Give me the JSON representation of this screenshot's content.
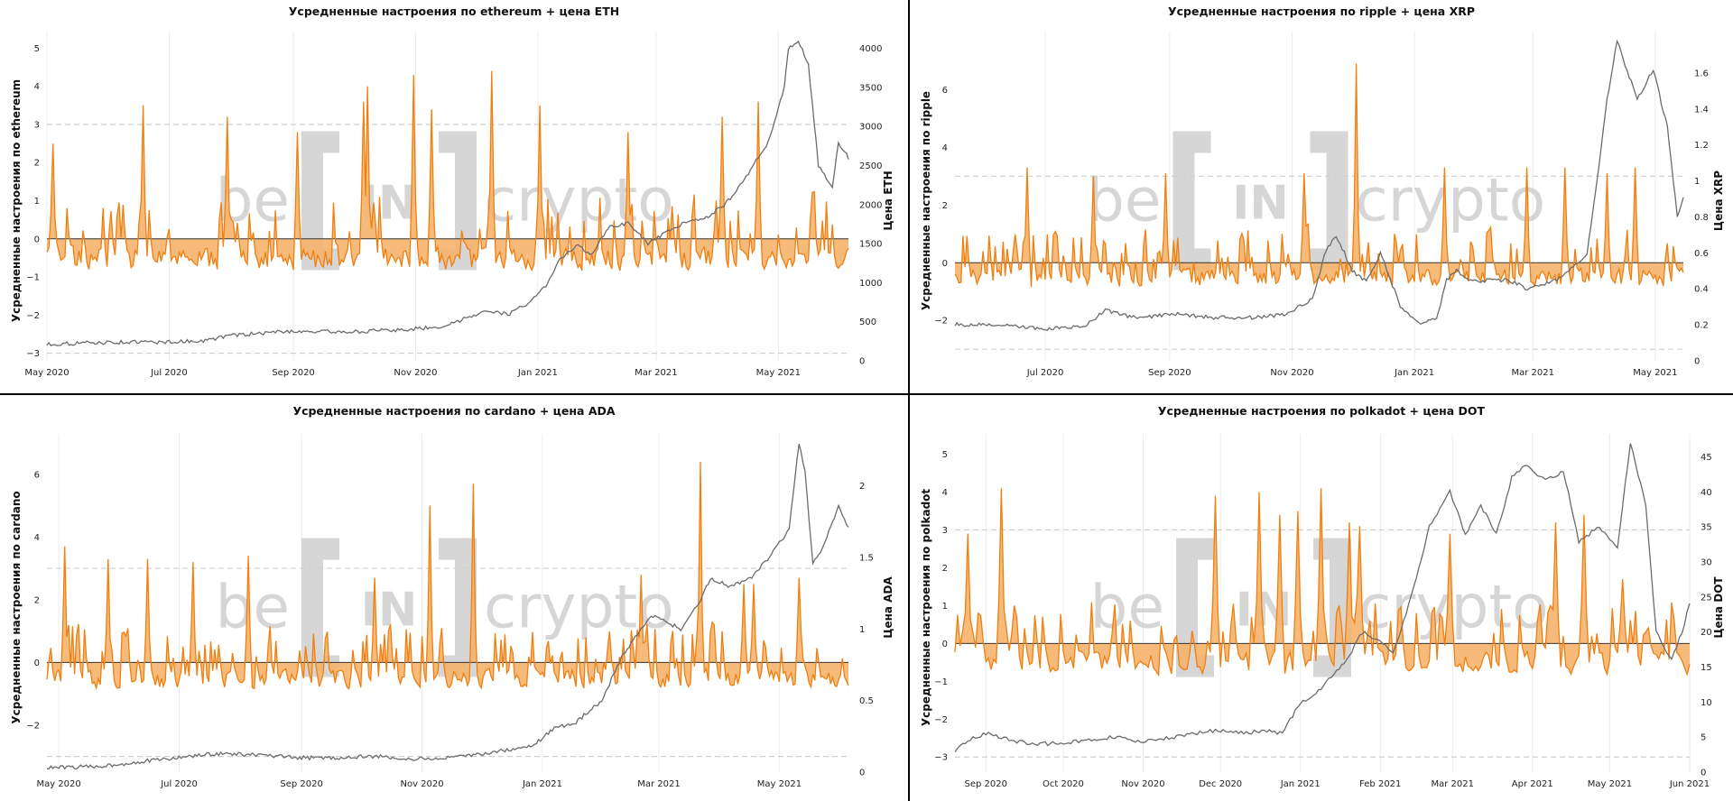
{
  "watermark": {
    "left": "be",
    "mid": "IN",
    "right": "crypto"
  },
  "colors": {
    "sentiment": "#f07f10",
    "fill": "#f5b26b",
    "price": "#6b6b6b",
    "grid": "#ececec",
    "ref": "#cfcfcf"
  },
  "chart_data": [
    {
      "type": "line",
      "title": "Усредненные настроения по ethereum + цена ETH",
      "ylabel": "Усредненные настроения по ethereum",
      "y2label": "Цена ETH",
      "ylim": [
        -3.2,
        5.2
      ],
      "y2lim": [
        0,
        4100
      ],
      "yticks": [
        "5",
        "4",
        "3",
        "2",
        "1",
        "0",
        "−1",
        "−2",
        "−3"
      ],
      "y2ticks": [
        "4000",
        "3500",
        "3000",
        "2500",
        "2000",
        "1500",
        "1000",
        "500",
        "0"
      ],
      "xticks": [
        "May 2020",
        "Jul 2020",
        "Sep 2020",
        "Nov 2020",
        "Jan 2021",
        "Mar 2021",
        "May 2021"
      ],
      "xrange_days": [
        0,
        400
      ],
      "xtick_days": [
        0,
        61,
        123,
        184,
        245,
        304,
        365
      ],
      "ref_lines": [
        3,
        -3
      ],
      "series": [
        {
          "name": "Настроения",
          "axis": "y",
          "seed": 11,
          "peaks": [
            [
              3,
              2.5
            ],
            [
              48,
              3.5
            ],
            [
              90,
              3.2
            ],
            [
              125,
              2.8
            ],
            [
              158,
              3.6
            ],
            [
              160,
              4.0
            ],
            [
              183,
              4.3
            ],
            [
              192,
              3.4
            ],
            [
              222,
              4.4
            ],
            [
              246,
              3.5
            ],
            [
              290,
              2.8
            ],
            [
              337,
              3.2
            ],
            [
              355,
              3.6
            ]
          ]
        },
        {
          "name": "Цена ETH",
          "axis": "y2",
          "x": [
            0,
            20,
            40,
            60,
            80,
            90,
            120,
            150,
            170,
            180,
            200,
            210,
            220,
            230,
            240,
            250,
            255,
            265,
            272,
            280,
            290,
            300,
            310,
            320,
            330,
            340,
            350,
            360,
            368,
            370,
            375,
            380,
            385,
            392,
            395,
            400
          ],
          "values": [
            210,
            230,
            240,
            240,
            260,
            320,
            380,
            370,
            390,
            400,
            450,
            560,
            650,
            590,
            740,
            980,
            1270,
            1480,
            1350,
            1700,
            1760,
            1500,
            1650,
            1800,
            1840,
            2050,
            2400,
            2800,
            3500,
            4000,
            4100,
            3800,
            2500,
            2200,
            2800,
            2600
          ]
        }
      ]
    },
    {
      "type": "line",
      "title": "Усредненные настроения по ripple + цена XRP",
      "ylabel": "Усредненные настроения по ripple",
      "y2label": "Цена XRP",
      "ylim": [
        -3.4,
        7.7
      ],
      "y2lim": [
        0,
        1.78
      ],
      "yticks": [
        "6",
        "4",
        "2",
        "0",
        "−2"
      ],
      "y2ticks": [
        "1.6",
        "1.4",
        "1.2",
        "1",
        "0.8",
        "0.6",
        "0.4",
        "0.2",
        "0"
      ],
      "xticks": [
        "Jul 2020",
        "Sep 2020",
        "Nov 2020",
        "Jan 2021",
        "Mar 2021",
        "May 2021"
      ],
      "xrange_days": [
        0,
        363
      ],
      "xtick_days": [
        45,
        107,
        168,
        229,
        288,
        349
      ],
      "ref_lines": [
        3,
        -3
      ],
      "series": [
        {
          "name": "Настроения",
          "axis": "y",
          "seed": 23,
          "peaks": [
            [
              36,
              3.3
            ],
            [
              69,
              3.0
            ],
            [
              105,
              3.1
            ],
            [
              174,
              3.1
            ],
            [
              200,
              6.9
            ],
            [
              244,
              3.3
            ],
            [
              285,
              3.3
            ],
            [
              304,
              3.3
            ],
            [
              325,
              3.1
            ],
            [
              339,
              3.3
            ]
          ]
        },
        {
          "name": "Цена XRP",
          "axis": "y2",
          "x": [
            0,
            20,
            40,
            55,
            65,
            75,
            90,
            110,
            130,
            150,
            165,
            178,
            185,
            190,
            198,
            205,
            212,
            222,
            232,
            240,
            245,
            250,
            258,
            268,
            276,
            285,
            292,
            300,
            308,
            315,
            320,
            325,
            330,
            340,
            348,
            355,
            360,
            363
          ],
          "values": [
            0.2,
            0.2,
            0.18,
            0.18,
            0.2,
            0.28,
            0.24,
            0.26,
            0.24,
            0.24,
            0.26,
            0.34,
            0.62,
            0.7,
            0.5,
            0.44,
            0.6,
            0.3,
            0.21,
            0.23,
            0.45,
            0.5,
            0.44,
            0.45,
            0.45,
            0.4,
            0.42,
            0.45,
            0.52,
            0.6,
            1.0,
            1.45,
            1.78,
            1.45,
            1.62,
            1.3,
            0.8,
            0.9
          ]
        }
      ]
    },
    {
      "type": "line",
      "title": "Усредненные настроения по cardano + цена ADA",
      "ylabel": "Усредненные настроения по cardano",
      "y2label": "Цена ADA",
      "ylim": [
        -3.5,
        7.0
      ],
      "y2lim": [
        0,
        2.3
      ],
      "yticks": [
        "6",
        "4",
        "2",
        "0",
        "−2"
      ],
      "y2ticks": [
        "2",
        "1.5",
        "1",
        "0.5",
        "0"
      ],
      "xticks": [
        "May 2020",
        "Jul 2020",
        "Sep 2020",
        "Nov 2020",
        "Jan 2021",
        "Mar 2021",
        "May 2021"
      ],
      "xrange_days": [
        -6,
        400
      ],
      "xtick_days": [
        0,
        61,
        123,
        184,
        245,
        304,
        365
      ],
      "ref_lines": [
        3,
        -3
      ],
      "series": [
        {
          "name": "Настроения",
          "axis": "y",
          "seed": 37,
          "peaks": [
            [
              3,
              3.7
            ],
            [
              25,
              3.3
            ],
            [
              45,
              3.3
            ],
            [
              68,
              3.2
            ],
            [
              96,
              3.4
            ],
            [
              160,
              2.7
            ],
            [
              188,
              5.0
            ],
            [
              210,
              5.7
            ],
            [
              295,
              2.8
            ],
            [
              325,
              6.4
            ],
            [
              347,
              2.5
            ],
            [
              352,
              2.5
            ],
            [
              375,
              2.7
            ]
          ]
        },
        {
          "name": "Цена ADA",
          "axis": "y2",
          "x": [
            -6,
            20,
            40,
            60,
            80,
            100,
            120,
            140,
            160,
            180,
            200,
            220,
            240,
            250,
            262,
            275,
            285,
            300,
            315,
            325,
            330,
            340,
            350,
            360,
            370,
            375,
            378,
            382,
            388,
            395,
            400
          ],
          "values": [
            0.03,
            0.04,
            0.07,
            0.1,
            0.13,
            0.12,
            0.1,
            0.1,
            0.11,
            0.09,
            0.1,
            0.14,
            0.18,
            0.3,
            0.35,
            0.5,
            0.8,
            1.1,
            1.0,
            1.2,
            1.35,
            1.3,
            1.35,
            1.5,
            1.7,
            2.3,
            2.1,
            1.45,
            1.6,
            1.85,
            1.7
          ]
        }
      ]
    },
    {
      "type": "line",
      "title": "Усредненные настроения по polkadot + цена DOT",
      "ylabel": "Усредненные настроения по polkadot",
      "y2label": "Цена DOT",
      "ylim": [
        -3.4,
        5.3
      ],
      "y2lim": [
        0,
        47
      ],
      "yticks": [
        "5",
        "4",
        "3",
        "2",
        "1",
        "0",
        "−1",
        "−2",
        "−3"
      ],
      "y2ticks": [
        "45",
        "40",
        "35",
        "30",
        "25",
        "20",
        "15",
        "10",
        "5",
        "0"
      ],
      "xticks": [
        "Sep 2020",
        "Oct 2020",
        "Nov 2020",
        "Dec 2020",
        "Jan 2021",
        "Feb 2021",
        "Mar 2021",
        "Apr 2021",
        "May 2021",
        "Jun 2021"
      ],
      "xrange_days": [
        -12,
        273
      ],
      "xtick_days": [
        0,
        30,
        61,
        91,
        122,
        153,
        181,
        212,
        242,
        273
      ],
      "ref_lines": [
        3,
        -3
      ],
      "series": [
        {
          "name": "Настроения",
          "axis": "y",
          "seed": 53,
          "peaks": [
            [
              -7,
              2.9
            ],
            [
              6,
              4.1
            ],
            [
              89,
              3.9
            ],
            [
              106,
              4.0
            ],
            [
              114,
              3.4
            ],
            [
              121,
              3.5
            ],
            [
              130,
              4.1
            ],
            [
              141,
              3.2
            ],
            [
              145,
              3.1
            ],
            [
              180,
              2.9
            ],
            [
              221,
              3.2
            ],
            [
              232,
              3.4
            ],
            [
              247,
              1.7
            ]
          ]
        },
        {
          "name": "Цена DOT",
          "axis": "y2",
          "x": [
            -12,
            -5,
            0,
            10,
            20,
            30,
            40,
            50,
            60,
            70,
            80,
            90,
            100,
            108,
            115,
            122,
            128,
            132,
            140,
            146,
            152,
            158,
            165,
            172,
            180,
            186,
            192,
            198,
            204,
            210,
            215,
            220,
            224,
            230,
            238,
            245,
            250,
            256,
            260,
            266,
            270,
            273
          ],
          "values": [
            3,
            5,
            5.5,
            4.5,
            4,
            4.2,
            4.5,
            5,
            4.3,
            4.8,
            5.5,
            6,
            5.5,
            6,
            5.5,
            10,
            11,
            13,
            16,
            20,
            19,
            17,
            25,
            35,
            40,
            34,
            38,
            34,
            42,
            44,
            42,
            42,
            43,
            33,
            35,
            32,
            47,
            38,
            20,
            16,
            20,
            24
          ]
        }
      ]
    }
  ]
}
